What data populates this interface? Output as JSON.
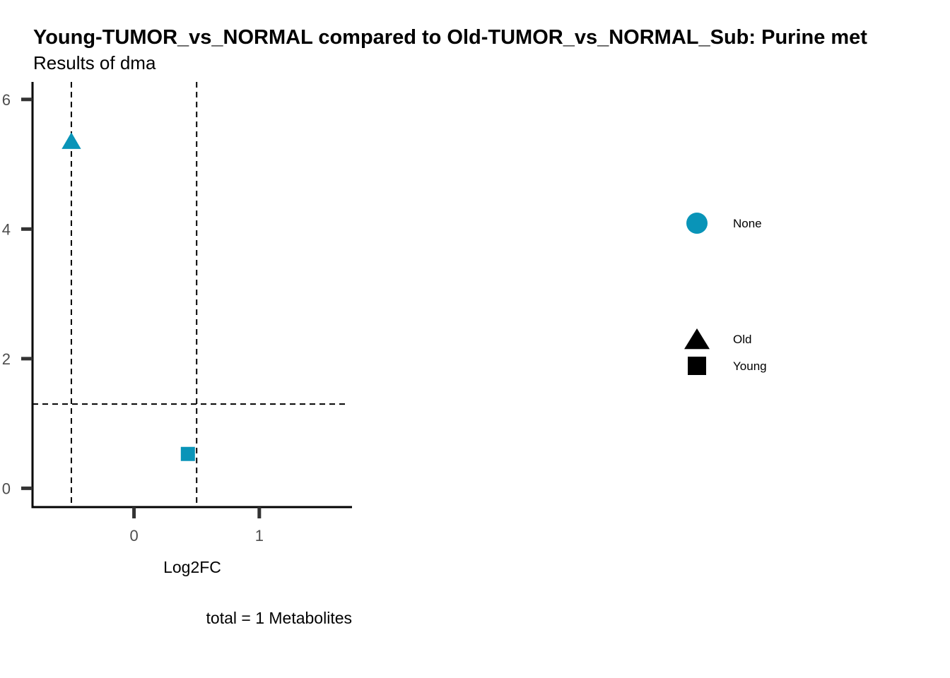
{
  "chart_data": {
    "type": "scatter",
    "title": "Young-TUMOR_vs_NORMAL compared to Old-TUMOR_vs_NORMAL_Sub: Purine met",
    "subtitle": "Results of dma",
    "xlabel": "Log2FC",
    "ylabel": "",
    "caption": "total = 1 Metabolites",
    "xlim": [
      -0.81,
      1.74
    ],
    "ylim": [
      -0.29,
      6.27
    ],
    "x_ticks": [
      0,
      1
    ],
    "y_ticks": [
      0,
      2,
      4,
      6
    ],
    "grid": false,
    "reference_lines": {
      "vertical": [
        -0.5,
        0.5
      ],
      "horizontal": [
        1.3
      ]
    },
    "points": [
      {
        "x": -0.5,
        "y": 5.35,
        "shape": "triangle",
        "color": "#0994B8",
        "series": "Old"
      },
      {
        "x": 0.43,
        "y": 0.53,
        "shape": "square",
        "color": "#0994B8",
        "series": "Young"
      }
    ],
    "legend": {
      "placement": "right",
      "color_entries": [
        {
          "label": "None",
          "color": "#0994B8"
        }
      ],
      "shape_entries": [
        {
          "label": "Old",
          "shape": "triangle"
        },
        {
          "label": "Young",
          "shape": "square"
        }
      ]
    }
  }
}
